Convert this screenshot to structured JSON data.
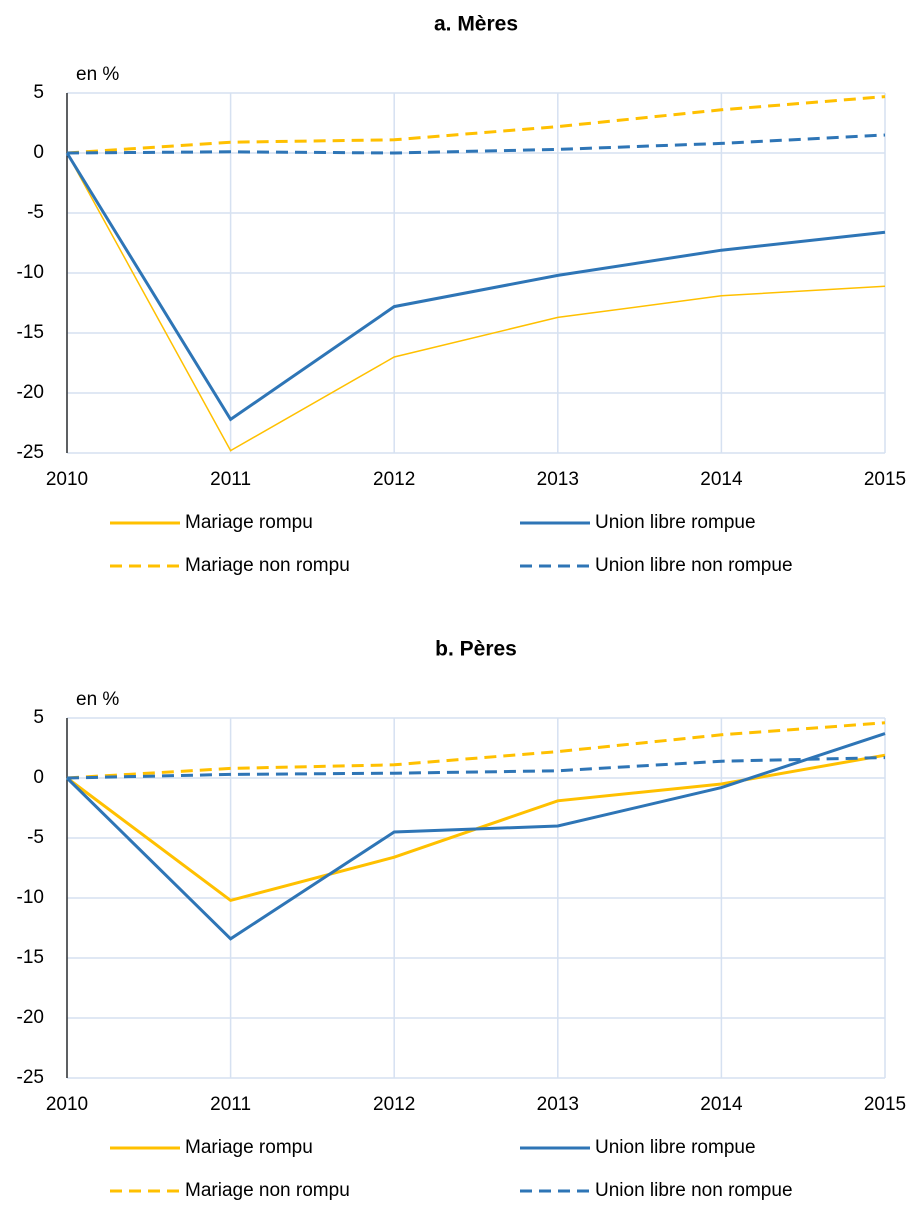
{
  "chart_data": [
    {
      "type": "line",
      "title": "a.   Mères",
      "ylabel": "en %",
      "x": [
        2010,
        2011,
        2012,
        2013,
        2014,
        2015
      ],
      "xlim": [
        2010,
        2015
      ],
      "xticks": [
        2010,
        2011,
        2012,
        2013,
        2014,
        2015
      ],
      "ylim": [
        -25,
        5
      ],
      "yticks": [
        5,
        0,
        -5,
        -10,
        -15,
        -20,
        -25
      ],
      "grid": true,
      "series": [
        {
          "name": "Mariage rompu",
          "color": "#ffc000",
          "dashed": false,
          "linewidth": 1.5,
          "values": [
            0,
            -24.8,
            -17,
            -13.7,
            -11.9,
            -11.1
          ]
        },
        {
          "name": "Union libre rompue",
          "color": "#2e75b6",
          "dashed": false,
          "linewidth": 3,
          "values": [
            0,
            -22.2,
            -12.8,
            -10.2,
            -8.1,
            -6.6
          ]
        },
        {
          "name": "Mariage non rompu",
          "color": "#ffc000",
          "dashed": true,
          "linewidth": 3,
          "values": [
            0,
            0.9,
            1.1,
            2.2,
            3.6,
            4.7
          ]
        },
        {
          "name": "Union libre non rompue",
          "color": "#2e75b6",
          "dashed": true,
          "linewidth": 3,
          "values": [
            0,
            0.1,
            0,
            0.3,
            0.8,
            1.5
          ]
        }
      ]
    },
    {
      "type": "line",
      "title": "b.   Pères",
      "ylabel": "en %",
      "x": [
        2010,
        2011,
        2012,
        2013,
        2014,
        2015
      ],
      "xlim": [
        2010,
        2015
      ],
      "xticks": [
        2010,
        2011,
        2012,
        2013,
        2014,
        2015
      ],
      "ylim": [
        -25,
        5
      ],
      "yticks": [
        5,
        0,
        -5,
        -10,
        -15,
        -20,
        -25
      ],
      "grid": true,
      "series": [
        {
          "name": "Mariage rompu",
          "color": "#ffc000",
          "dashed": false,
          "linewidth": 3,
          "values": [
            0,
            -10.2,
            -6.6,
            -1.9,
            -0.5,
            1.9
          ]
        },
        {
          "name": "Union libre rompue",
          "color": "#2e75b6",
          "dashed": false,
          "linewidth": 3,
          "values": [
            0,
            -13.4,
            -4.5,
            -4.0,
            -0.8,
            3.7
          ]
        },
        {
          "name": "Mariage non rompu",
          "color": "#ffc000",
          "dashed": true,
          "linewidth": 3,
          "values": [
            0,
            0.8,
            1.1,
            2.2,
            3.6,
            4.6
          ]
        },
        {
          "name": "Union libre non rompue",
          "color": "#2e75b6",
          "dashed": true,
          "linewidth": 3,
          "values": [
            0,
            0.3,
            0.4,
            0.6,
            1.4,
            1.7
          ]
        }
      ]
    }
  ]
}
